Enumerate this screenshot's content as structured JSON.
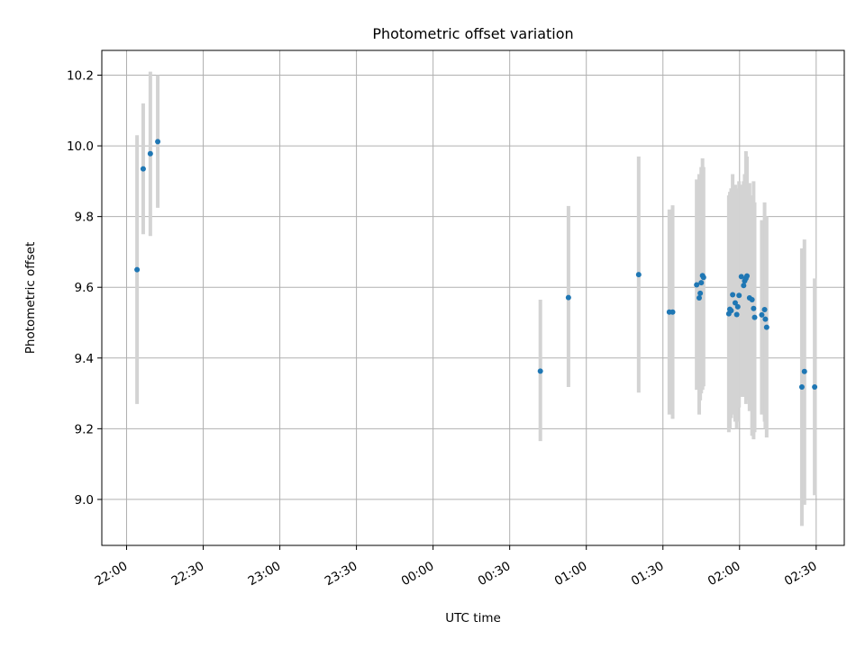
{
  "chart_data": {
    "type": "scatter",
    "title": "Photometric offset variation",
    "xlabel": "UTC time",
    "ylabel": "Photometric offset",
    "x_tick_labels": [
      "22:00",
      "22:30",
      "23:00",
      "23:30",
      "00:00",
      "00:30",
      "01:00",
      "01:30",
      "02:00",
      "02:30"
    ],
    "x_tick_minutes": [
      0,
      30,
      60,
      90,
      120,
      150,
      180,
      210,
      240,
      270
    ],
    "y_ticks": [
      9.0,
      9.2,
      9.4,
      9.6,
      9.8,
      10.0,
      10.2
    ],
    "y_tick_labels": [
      "9.0",
      "9.2",
      "9.4",
      "9.6",
      "9.8",
      "10.0",
      "10.2"
    ],
    "xlim_minutes": [
      -9.7,
      281.0
    ],
    "ylim": [
      8.87,
      10.27
    ],
    "grid": true,
    "legend": "none",
    "colors": {
      "points": "#1f77b4",
      "errorbars": "#d3d3d3",
      "grid": "#b0b0b0"
    },
    "points": [
      {
        "t": 4.1,
        "y": 9.65,
        "lo": 9.27,
        "hi": 10.03
      },
      {
        "t": 6.5,
        "y": 9.935,
        "lo": 9.75,
        "hi": 10.12
      },
      {
        "t": 9.3,
        "y": 9.978,
        "lo": 9.745,
        "hi": 10.21
      },
      {
        "t": 12.2,
        "y": 10.012,
        "lo": 9.825,
        "hi": 10.2
      },
      {
        "t": 162.0,
        "y": 9.363,
        "lo": 9.165,
        "hi": 9.565
      },
      {
        "t": 173.0,
        "y": 9.571,
        "lo": 9.318,
        "hi": 9.83
      },
      {
        "t": 200.5,
        "y": 9.636,
        "lo": 9.302,
        "hi": 9.97
      },
      {
        "t": 212.5,
        "y": 9.53,
        "lo": 9.24,
        "hi": 9.82
      },
      {
        "t": 213.8,
        "y": 9.53,
        "lo": 9.228,
        "hi": 9.832
      },
      {
        "t": 223.2,
        "y": 9.607,
        "lo": 9.31,
        "hi": 9.905
      },
      {
        "t": 224.2,
        "y": 9.57,
        "lo": 9.24,
        "hi": 9.92
      },
      {
        "t": 224.6,
        "y": 9.583,
        "lo": 9.28,
        "hi": 9.89
      },
      {
        "t": 225.0,
        "y": 9.613,
        "lo": 9.3,
        "hi": 9.94
      },
      {
        "t": 225.5,
        "y": 9.633,
        "lo": 9.31,
        "hi": 9.965
      },
      {
        "t": 225.9,
        "y": 9.628,
        "lo": 9.32,
        "hi": 9.94
      },
      {
        "t": 235.8,
        "y": 9.525,
        "lo": 9.19,
        "hi": 9.86
      },
      {
        "t": 236.2,
        "y": 9.538,
        "lo": 9.2,
        "hi": 9.87
      },
      {
        "t": 236.7,
        "y": 9.534,
        "lo": 9.23,
        "hi": 9.88
      },
      {
        "t": 237.3,
        "y": 9.579,
        "lo": 9.24,
        "hi": 9.92
      },
      {
        "t": 238.3,
        "y": 9.556,
        "lo": 9.22,
        "hi": 9.89
      },
      {
        "t": 238.9,
        "y": 9.523,
        "lo": 9.2,
        "hi": 9.87
      },
      {
        "t": 239.3,
        "y": 9.545,
        "lo": 9.22,
        "hi": 9.88
      },
      {
        "t": 239.8,
        "y": 9.577,
        "lo": 9.26,
        "hi": 9.9
      },
      {
        "t": 240.7,
        "y": 9.63,
        "lo": 9.29,
        "hi": 9.89
      },
      {
        "t": 241.6,
        "y": 9.605,
        "lo": 9.3,
        "hi": 9.9
      },
      {
        "t": 242.0,
        "y": 9.618,
        "lo": 9.29,
        "hi": 9.92
      },
      {
        "t": 242.5,
        "y": 9.625,
        "lo": 9.27,
        "hi": 9.985
      },
      {
        "t": 242.9,
        "y": 9.632,
        "lo": 9.28,
        "hi": 9.97
      },
      {
        "t": 243.9,
        "y": 9.57,
        "lo": 9.25,
        "hi": 9.895
      },
      {
        "t": 244.9,
        "y": 9.565,
        "lo": 9.18,
        "hi": 9.86
      },
      {
        "t": 245.5,
        "y": 9.54,
        "lo": 9.17,
        "hi": 9.9
      },
      {
        "t": 245.9,
        "y": 9.515,
        "lo": 9.19,
        "hi": 9.84
      },
      {
        "t": 248.7,
        "y": 9.522,
        "lo": 9.24,
        "hi": 9.79
      },
      {
        "t": 249.8,
        "y": 9.537,
        "lo": 9.22,
        "hi": 9.84
      },
      {
        "t": 250.1,
        "y": 9.51,
        "lo": 9.2,
        "hi": 9.8
      },
      {
        "t": 250.6,
        "y": 9.487,
        "lo": 9.175,
        "hi": 9.8
      },
      {
        "t": 264.4,
        "y": 9.318,
        "lo": 8.925,
        "hi": 9.71
      },
      {
        "t": 265.4,
        "y": 9.362,
        "lo": 8.985,
        "hi": 9.735
      },
      {
        "t": 269.4,
        "y": 9.318,
        "lo": 9.012,
        "hi": 9.625
      }
    ]
  }
}
